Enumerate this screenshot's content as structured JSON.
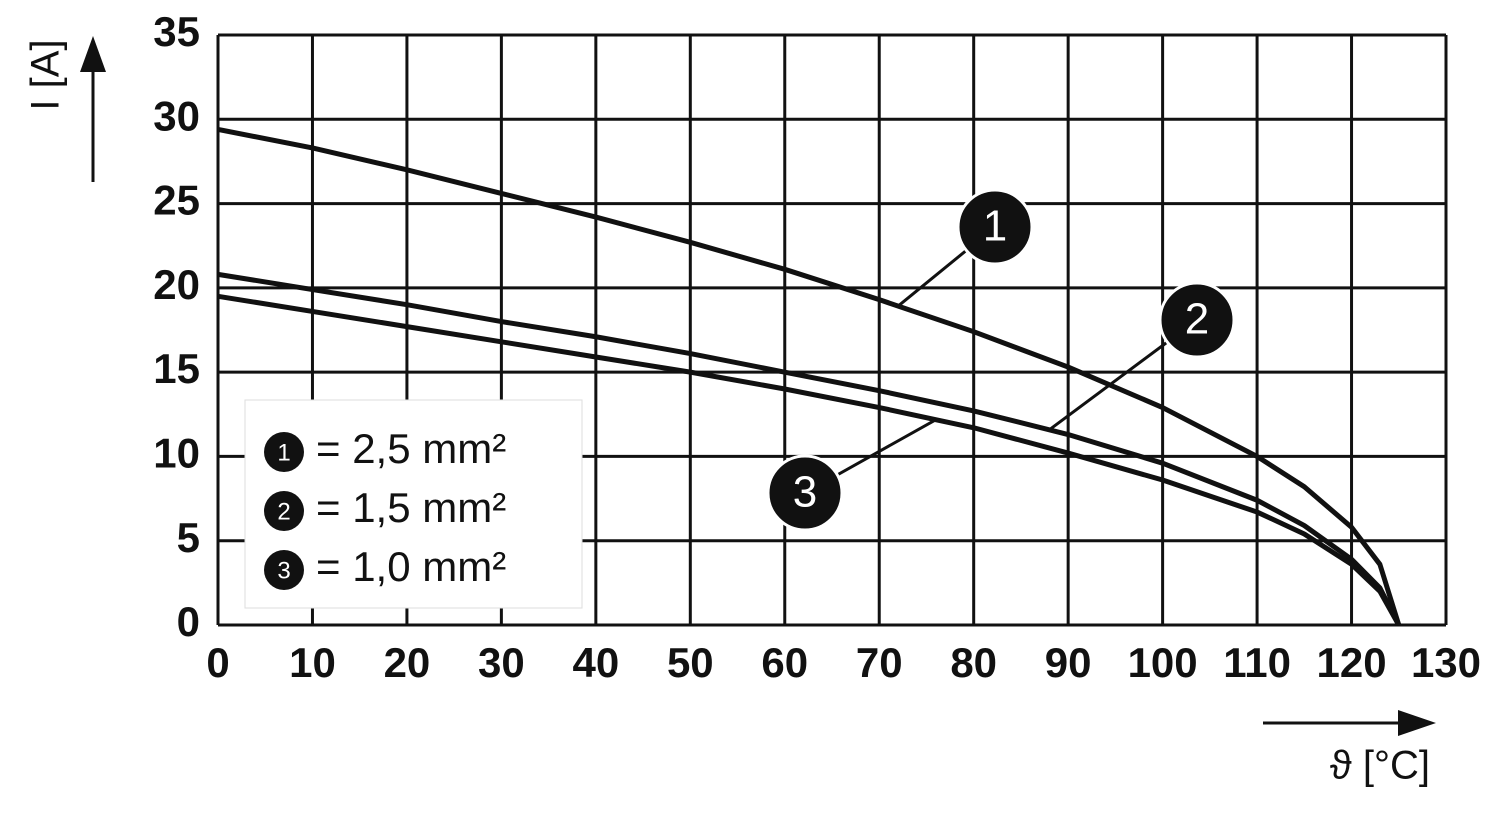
{
  "chart_data": {
    "type": "line",
    "y_label": "I [A]",
    "x_label": "ϑ [°C]",
    "xlim": [
      0,
      130
    ],
    "xticks": [
      0,
      10,
      20,
      30,
      40,
      50,
      60,
      70,
      80,
      90,
      100,
      110,
      120,
      130
    ],
    "ylim": [
      0,
      35
    ],
    "yticks": [
      0,
      5,
      10,
      15,
      20,
      25,
      30,
      35
    ],
    "grid": true,
    "legend": "lower left",
    "x": [
      0,
      10,
      20,
      30,
      40,
      50,
      60,
      70,
      80,
      90,
      100,
      110,
      115,
      120,
      123,
      125
    ],
    "series": [
      {
        "label": "1",
        "name": "= 2,5 mm²",
        "color": "#111111",
        "values": [
          29.4,
          28.3,
          27.0,
          25.6,
          24.2,
          22.7,
          21.1,
          19.3,
          17.4,
          15.3,
          12.9,
          10.0,
          8.2,
          5.8,
          3.6,
          0
        ]
      },
      {
        "label": "2",
        "name": "= 1,5 mm²",
        "color": "#111111",
        "values": [
          20.8,
          19.9,
          19.0,
          18.0,
          17.1,
          16.1,
          15.0,
          13.9,
          12.7,
          11.3,
          9.6,
          7.4,
          5.9,
          3.9,
          2.2,
          0
        ]
      },
      {
        "label": "3",
        "name": "= 1,0 mm²",
        "color": "#111111",
        "values": [
          19.5,
          18.6,
          17.7,
          16.8,
          15.9,
          15.0,
          14.0,
          12.9,
          11.7,
          10.2,
          8.6,
          6.7,
          5.4,
          3.6,
          2.0,
          0
        ]
      }
    ]
  }
}
